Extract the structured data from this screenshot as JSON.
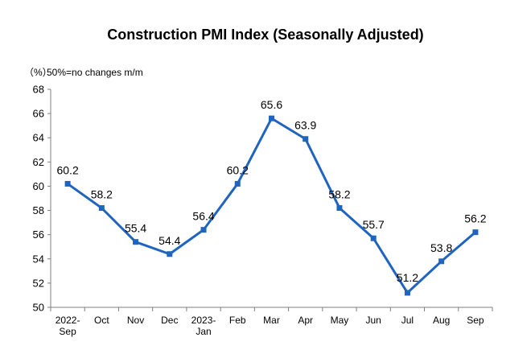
{
  "chart_data": {
    "type": "line",
    "title": "Construction PMI Index (Seasonally Adjusted)",
    "ylabel": "（%）",
    "annotation": "50%=no changes m/m",
    "xlabel": "",
    "categories": [
      [
        "2022-",
        "Sep"
      ],
      [
        "Oct"
      ],
      [
        "Nov"
      ],
      [
        "Dec"
      ],
      [
        "2023-",
        "Jan"
      ],
      [
        "Feb"
      ],
      [
        "Mar"
      ],
      [
        "Apr"
      ],
      [
        "May"
      ],
      [
        "Jun"
      ],
      [
        "Jul"
      ],
      [
        "Aug"
      ],
      [
        "Sep"
      ]
    ],
    "values": [
      60.2,
      58.2,
      55.4,
      54.4,
      56.4,
      60.2,
      65.6,
      63.9,
      58.2,
      55.7,
      51.2,
      53.8,
      56.2
    ],
    "data_labels": [
      "60.2",
      "58.2",
      "55.4",
      "54.4",
      "56.4",
      "60.2",
      "65.6",
      "63.9",
      "58.2",
      "55.7",
      "51.2",
      "53.8",
      "56.2"
    ],
    "yticks": [
      50,
      52,
      54,
      56,
      58,
      60,
      62,
      64,
      66,
      68
    ],
    "ylim": [
      50,
      68
    ],
    "grid": false,
    "legend": "none",
    "line_color": "#1F64BE",
    "marker": "square"
  }
}
